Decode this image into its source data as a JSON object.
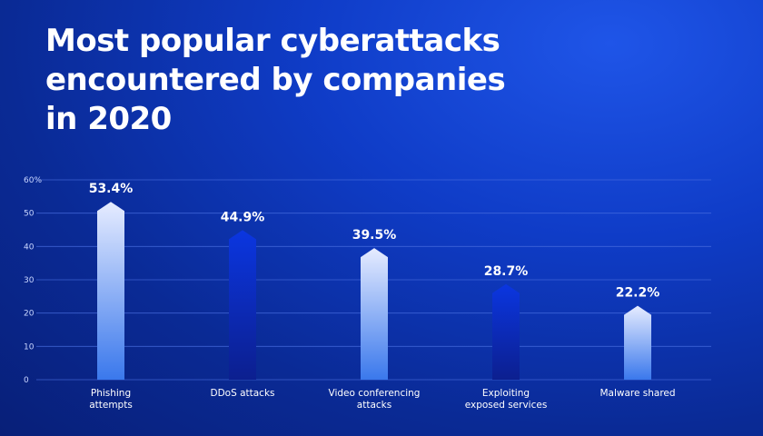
{
  "title": "Most popular cyberattacks\nencountered by companies\nin 2020",
  "chart_data": {
    "type": "bar",
    "categories": [
      [
        "Phishing",
        "attempts"
      ],
      [
        "DDoS attacks"
      ],
      [
        "Video conferencing",
        "attacks"
      ],
      [
        "Exploiting",
        "exposed services"
      ],
      [
        "Malware shared"
      ]
    ],
    "values": [
      53.4,
      44.9,
      39.5,
      28.7,
      22.2
    ],
    "data_labels": [
      "53.4%",
      "44.9%",
      "39.5%",
      "28.7%",
      "22.2%"
    ],
    "ylim": [
      0,
      60
    ],
    "yticks": [
      0,
      10,
      20,
      30,
      40,
      50,
      60
    ],
    "ytick_labels": [
      "0",
      "10",
      "20",
      "30",
      "40",
      "50",
      "60%"
    ],
    "grid": true,
    "bar_styles": [
      "light",
      "dark",
      "light",
      "dark",
      "light"
    ],
    "colors": {
      "light_top": "#e6ecff",
      "light_bottom": "#3a78ec",
      "dark_top": "#0b36e0",
      "dark_bottom": "#0c1f8f",
      "grid": "#4a6fe0"
    }
  }
}
